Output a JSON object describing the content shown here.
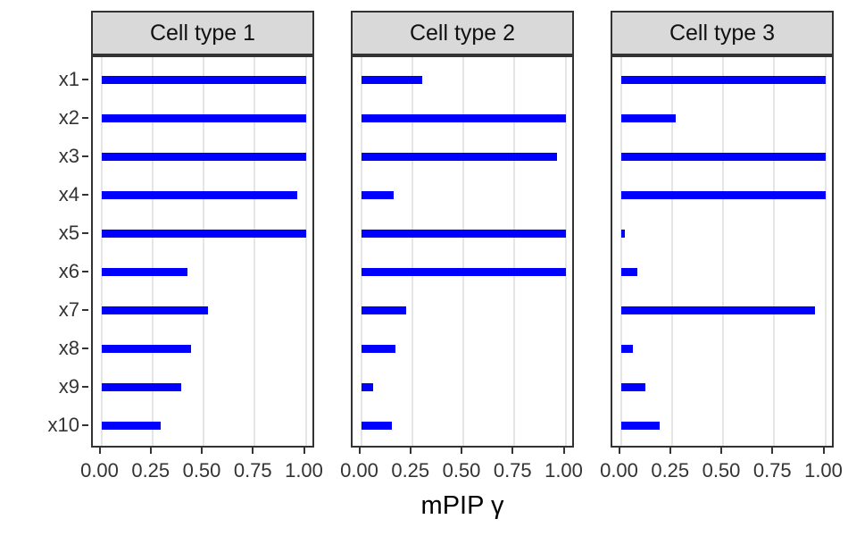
{
  "chart_data": {
    "type": "bar",
    "orientation": "horizontal",
    "xlabel": "mPIP γ",
    "ylabel": "",
    "xlim": [
      0,
      1
    ],
    "x_tick_labels": [
      "0.00",
      "0.25",
      "0.50",
      "0.75",
      "1.00"
    ],
    "x_tick_values": [
      0,
      0.25,
      0.5,
      0.75,
      1.0
    ],
    "categories": [
      "x1",
      "x2",
      "x3",
      "x4",
      "x5",
      "x6",
      "x7",
      "x8",
      "x9",
      "x10"
    ],
    "grid": "vertical-major-only",
    "legend": "none",
    "facets": [
      {
        "title": "Cell type 1",
        "values": [
          1.0,
          1.0,
          1.0,
          0.96,
          1.0,
          0.42,
          0.52,
          0.44,
          0.39,
          0.29
        ]
      },
      {
        "title": "Cell type 2",
        "values": [
          0.3,
          1.0,
          0.96,
          0.16,
          1.0,
          1.0,
          0.22,
          0.17,
          0.06,
          0.15
        ]
      },
      {
        "title": "Cell type 3",
        "values": [
          1.0,
          0.27,
          1.0,
          1.0,
          0.02,
          0.08,
          0.95,
          0.06,
          0.12,
          0.19
        ]
      }
    ],
    "colors": {
      "bar": "#0000ff",
      "gridline": "#e5e5e5",
      "panel_border": "#333333",
      "strip_fill": "#d9d9d9",
      "axis_text": "#333333",
      "title_text": "#000000"
    }
  }
}
